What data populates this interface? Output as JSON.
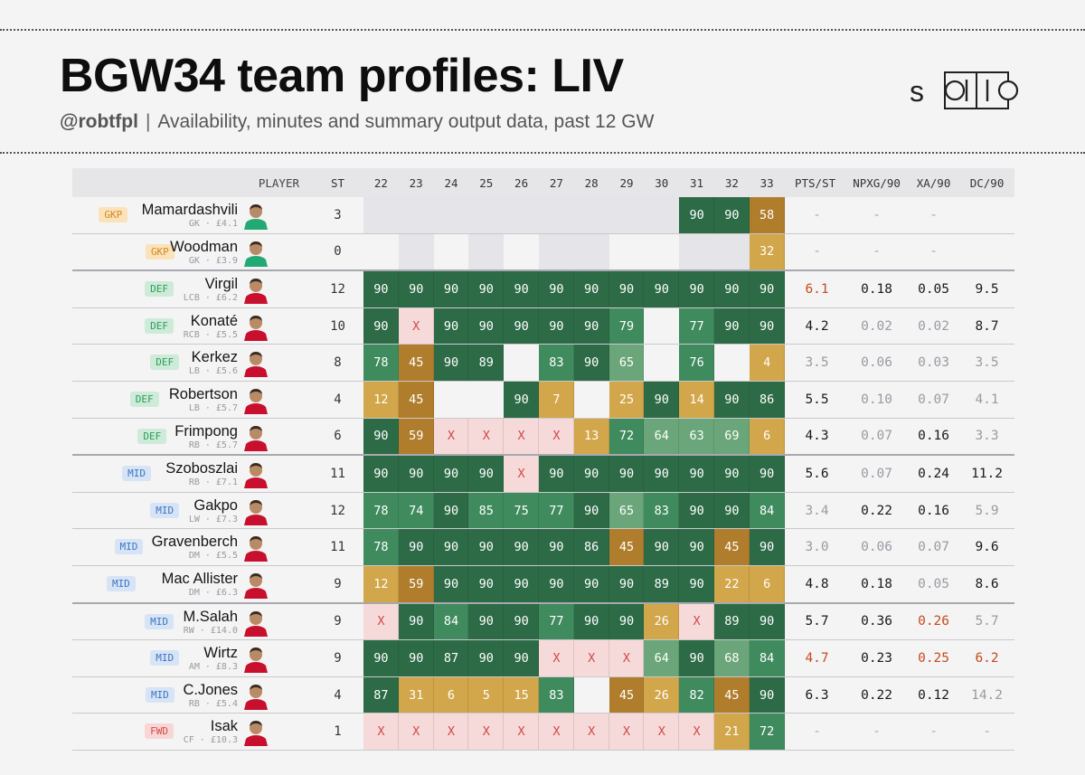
{
  "header": {
    "title": "BGW34 team profiles: LIV",
    "handle": "@robtfpl",
    "separator": "|",
    "description": "Availability, minutes and summary output data, past 12 GW"
  },
  "logo": {
    "text": "solio"
  },
  "colors": {
    "bg": "#f4f4f4",
    "min_high": "#2d6b47",
    "min_mid": "#3f8b5e",
    "min_low": "#6aa679",
    "min_partial": "#d2a64a",
    "min_short": "#b07d2c",
    "absent": "#f6dada",
    "absent_text": "#d34848",
    "gk_bench": "#e5e5e9",
    "highlight": "#c54b1f",
    "muted": "#9a9aa4"
  },
  "chart_data": {
    "type": "table",
    "columns": [
      "PLAYER",
      "ST",
      "22",
      "23",
      "24",
      "25",
      "26",
      "27",
      "28",
      "29",
      "30",
      "31",
      "32",
      "33",
      "PTS/ST",
      "NPXG/90",
      "XA/90",
      "DC/90"
    ],
    "gameweeks": [
      "22",
      "23",
      "24",
      "25",
      "26",
      "27",
      "28",
      "29",
      "30",
      "31",
      "32",
      "33"
    ],
    "players": [
      {
        "pos": "GKP",
        "name": "Mamardashvili",
        "detail": "GK · £4.1",
        "st": "3",
        "mins": [
          "g",
          "g",
          "g",
          "g",
          "g",
          "g",
          "g",
          "g",
          "g",
          "90",
          "90",
          "58"
        ],
        "pts_st": "-",
        "npxg90": "-",
        "xa90": "-",
        "dc90": "",
        "group_start": true
      },
      {
        "pos": "GKP",
        "name": "Woodman",
        "detail": "GK · £3.9",
        "st": "0",
        "mins": [
          "",
          "g",
          "",
          "g",
          "",
          "g",
          "g",
          "",
          "",
          "g",
          "g",
          "32"
        ],
        "pts_st": "-",
        "npxg90": "-",
        "xa90": "-",
        "dc90": ""
      },
      {
        "pos": "DEF",
        "name": "Virgil",
        "detail": "LCB · £6.2",
        "st": "12",
        "mins": [
          "90",
          "90",
          "90",
          "90",
          "90",
          "90",
          "90",
          "90",
          "90",
          "90",
          "90",
          "90"
        ],
        "pts_st": "6.1",
        "npxg90": "0.18",
        "xa90": "0.05",
        "dc90": "9.5",
        "group_start": true
      },
      {
        "pos": "DEF",
        "name": "Konaté",
        "detail": "RCB · £5.5",
        "st": "10",
        "mins": [
          "90",
          "X",
          "90",
          "90",
          "90",
          "90",
          "90",
          "79",
          "",
          "77",
          "90",
          "90"
        ],
        "pts_st": "4.2",
        "npxg90": "0.02",
        "xa90": "0.02",
        "dc90": "8.7"
      },
      {
        "pos": "DEF",
        "name": "Kerkez",
        "detail": "LB · £5.6",
        "st": "8",
        "mins": [
          "78",
          "45",
          "90",
          "89",
          "",
          "83",
          "90",
          "65",
          "",
          "76",
          "",
          "4"
        ],
        "pts_st": "3.5",
        "npxg90": "0.06",
        "xa90": "0.03",
        "dc90": "3.5"
      },
      {
        "pos": "DEF",
        "name": "Robertson",
        "detail": "LB · £5.7",
        "st": "4",
        "mins": [
          "12",
          "45",
          "",
          "",
          "90",
          "7",
          "",
          "25",
          "90",
          "14",
          "90",
          "86"
        ],
        "pts_st": "5.5",
        "npxg90": "0.10",
        "xa90": "0.07",
        "dc90": "4.1"
      },
      {
        "pos": "DEF",
        "name": "Frimpong",
        "detail": "RB · £5.7",
        "st": "6",
        "mins": [
          "90",
          "59",
          "X",
          "X",
          "X",
          "X",
          "13",
          "72",
          "64",
          "63",
          "69",
          "6"
        ],
        "pts_st": "4.3",
        "npxg90": "0.07",
        "xa90": "0.16",
        "dc90": "3.3"
      },
      {
        "pos": "MID",
        "name": "Szoboszlai",
        "detail": "RB · £7.1",
        "st": "11",
        "mins": [
          "90",
          "90",
          "90",
          "90",
          "X",
          "90",
          "90",
          "90",
          "90",
          "90",
          "90",
          "90"
        ],
        "pts_st": "5.6",
        "npxg90": "0.07",
        "xa90": "0.24",
        "dc90": "11.2",
        "group_start": true
      },
      {
        "pos": "MID",
        "name": "Gakpo",
        "detail": "LW · £7.3",
        "st": "12",
        "mins": [
          "78",
          "74",
          "90",
          "85",
          "75",
          "77",
          "90",
          "65",
          "83",
          "90",
          "90",
          "84"
        ],
        "pts_st": "3.4",
        "npxg90": "0.22",
        "xa90": "0.16",
        "dc90": "5.9"
      },
      {
        "pos": "MID",
        "name": "Gravenberch",
        "detail": "DM · £5.5",
        "st": "11",
        "mins": [
          "78",
          "90",
          "90",
          "90",
          "90",
          "90",
          "86",
          "45",
          "90",
          "90",
          "45",
          "90"
        ],
        "pts_st": "3.0",
        "npxg90": "0.06",
        "xa90": "0.07",
        "dc90": "9.6"
      },
      {
        "pos": "MID",
        "name": "Mac Allister",
        "detail": "DM · £6.3",
        "st": "9",
        "mins": [
          "12",
          "59",
          "90",
          "90",
          "90",
          "90",
          "90",
          "90",
          "89",
          "90",
          "22",
          "6"
        ],
        "pts_st": "4.8",
        "npxg90": "0.18",
        "xa90": "0.05",
        "dc90": "8.6"
      },
      {
        "pos": "MID",
        "name": "M.Salah",
        "detail": "RW · £14.0",
        "st": "9",
        "mins": [
          "X",
          "90",
          "84",
          "90",
          "90",
          "77",
          "90",
          "90",
          "26",
          "X",
          "89",
          "90"
        ],
        "pts_st": "5.7",
        "npxg90": "0.36",
        "xa90": "0.26",
        "dc90": "5.7",
        "group_start": true
      },
      {
        "pos": "MID",
        "name": "Wirtz",
        "detail": "AM · £8.3",
        "st": "9",
        "mins": [
          "90",
          "90",
          "87",
          "90",
          "90",
          "X",
          "X",
          "X",
          "64",
          "90",
          "68",
          "84"
        ],
        "pts_st": "4.7",
        "npxg90": "0.23",
        "xa90": "0.25",
        "dc90": "6.2"
      },
      {
        "pos": "MID",
        "name": "C.Jones",
        "detail": "RB · £5.4",
        "st": "4",
        "mins": [
          "87",
          "31",
          "6",
          "5",
          "15",
          "83",
          "",
          "45",
          "26",
          "82",
          "45",
          "90"
        ],
        "pts_st": "6.3",
        "npxg90": "0.22",
        "xa90": "0.12",
        "dc90": "14.2"
      },
      {
        "pos": "FWD",
        "name": "Isak",
        "detail": "CF · £10.3",
        "st": "1",
        "mins": [
          "X",
          "X",
          "X",
          "X",
          "X",
          "X",
          "X",
          "X",
          "X",
          "X",
          "21",
          "72"
        ],
        "pts_st": "-",
        "npxg90": "-",
        "xa90": "-",
        "dc90": "-"
      }
    ],
    "stat_styles": {
      "highlight": [
        "0-pts_st",
        "2-pts_st",
        "11-xa90",
        "12-xa90",
        "12-pts_st",
        "12-dc90"
      ],
      "muted": [
        "1-xa90",
        "1-pts_st",
        "3-npxg90",
        "3-xa90",
        "4-pts_st",
        "4-npxg90",
        "4-xa90",
        "4-dc90",
        "5-npxg90",
        "5-xa90",
        "5-dc90",
        "6-npxg90",
        "6-dc90",
        "7-npxg90",
        "8-pts_st",
        "8-dc90",
        "9-pts_st",
        "9-npxg90",
        "9-xa90",
        "10-xa90",
        "11-dc90",
        "12-dc90x",
        "12-dc90y",
        "13-dc90"
      ]
    }
  }
}
